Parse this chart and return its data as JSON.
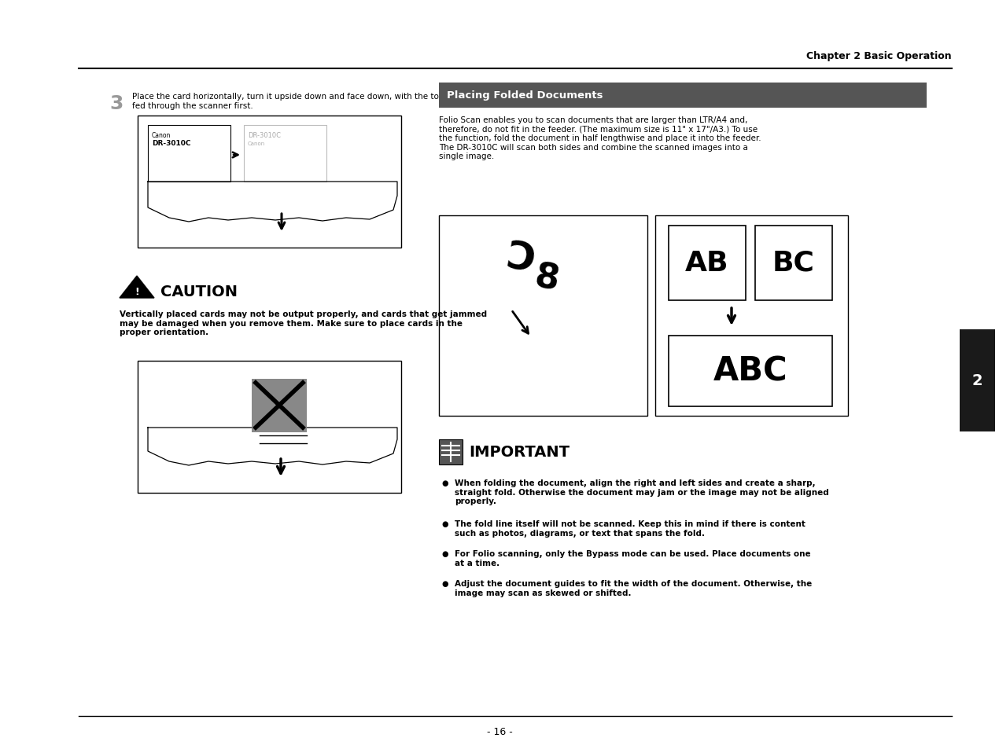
{
  "page_bg": "#ffffff",
  "header_text": "Chapter 2 Basic Operation",
  "side_tab_color": "#1a1a1a",
  "side_tab_num": "2",
  "footer_text": "- 16 -",
  "step3_num": "3",
  "step3_text": "Place the card horizontally, turn it upside down and face down, with the top\nfed through the scanner first.",
  "caution_title": "CAUTION",
  "caution_text": "Vertically placed cards may not be output properly, and cards that get jammed\nmay be damaged when you remove them. Make sure to place cards in the\nproper orientation.",
  "section_header_bg": "#555555",
  "section_header_text": "Placing Folded Documents",
  "folio_text": "Folio Scan enables you to scan documents that are larger than LTR/A4 and,\ntherefore, do not fit in the feeder. (The maximum size is 11\" x 17\"/A3.) To use\nthe function, fold the document in half lengthwise and place it into the feeder.\nThe DR-3010C will scan both sides and combine the scanned images into a\nsingle image.",
  "important_title": "IMPORTANT",
  "important_bullet1": "When folding the document, align the right and left sides and create a sharp,\nstraight fold. Otherwise the document may jam or the image may not be aligned\nproperly.",
  "important_bullet2": "The fold line itself will not be scanned. Keep this in mind if there is content\nsuch as photos, diagrams, or text that spans the fold.",
  "important_bullet3": "For Folio scanning, only the Bypass mode can be used. Place documents one\nat a time.",
  "important_bullet4": "Adjust the document guides to fit the width of the document. Otherwise, the\nimage may scan as skewed or shifted."
}
